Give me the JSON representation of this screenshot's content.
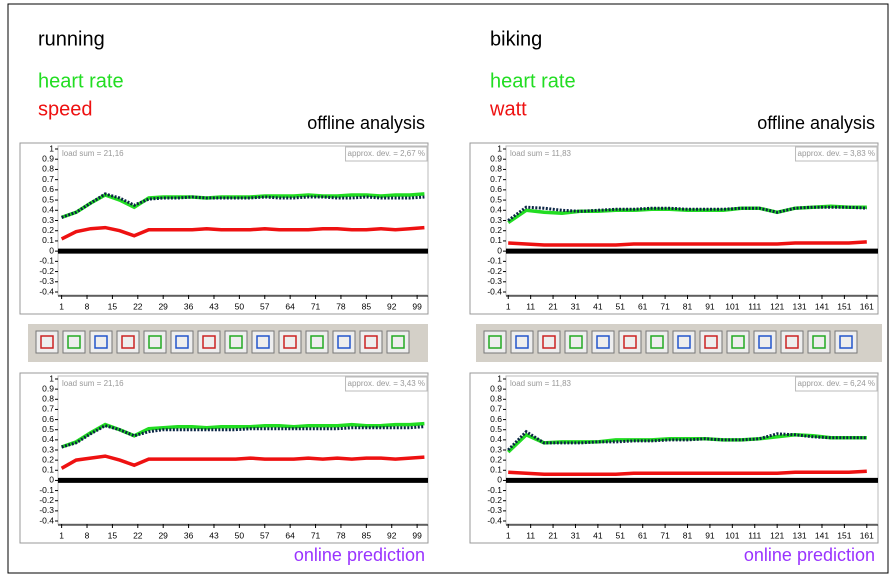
{
  "chart_data": [
    {
      "type": "line",
      "title": "running",
      "caption": "offline analysis",
      "annotations": [
        "load sum = 21,16",
        "approx. dev. = 2,67 %"
      ],
      "x": [
        1,
        5,
        9,
        13,
        17,
        21,
        25,
        29,
        33,
        37,
        41,
        45,
        49,
        53,
        57,
        61,
        65,
        69,
        73,
        77,
        81,
        85,
        89,
        93,
        97,
        101
      ],
      "xlim": [
        0,
        102
      ],
      "xticks": [
        1,
        8,
        15,
        22,
        29,
        36,
        43,
        50,
        57,
        64,
        71,
        78,
        85,
        92,
        99
      ],
      "ylim": [
        -0.4,
        1
      ],
      "yticks": [
        -0.4,
        -0.3,
        -0.2,
        -0.1,
        0,
        0.1,
        0.2,
        0.3,
        0.4,
        0.5,
        0.6,
        0.7,
        0.8,
        0.9,
        1
      ],
      "series": [
        {
          "name": "heart rate",
          "color": "#22dd22",
          "style": "solid",
          "values": [
            0.33,
            0.38,
            0.47,
            0.55,
            0.5,
            0.43,
            0.52,
            0.53,
            0.53,
            0.53,
            0.52,
            0.53,
            0.53,
            0.53,
            0.54,
            0.54,
            0.54,
            0.55,
            0.54,
            0.54,
            0.55,
            0.55,
            0.54,
            0.55,
            0.55,
            0.56
          ]
        },
        {
          "name": "speed",
          "color": "#ee1111",
          "style": "solid",
          "values": [
            0.12,
            0.19,
            0.22,
            0.23,
            0.2,
            0.15,
            0.21,
            0.21,
            0.21,
            0.21,
            0.22,
            0.21,
            0.21,
            0.21,
            0.22,
            0.21,
            0.21,
            0.21,
            0.22,
            0.22,
            0.21,
            0.21,
            0.22,
            0.21,
            0.22,
            0.23
          ]
        },
        {
          "color": "#0b2545",
          "style": "dotted",
          "values": [
            0.33,
            0.38,
            0.47,
            0.56,
            0.52,
            0.45,
            0.51,
            0.52,
            0.52,
            0.53,
            0.52,
            0.52,
            0.52,
            0.52,
            0.53,
            0.52,
            0.52,
            0.53,
            0.53,
            0.52,
            0.52,
            0.53,
            0.52,
            0.52,
            0.52,
            0.53
          ]
        }
      ]
    },
    {
      "type": "line",
      "caption": "online prediction",
      "annotations": [
        "load sum = 21,16",
        "approx. dev. = 3,43 %"
      ],
      "x": [
        1,
        5,
        9,
        13,
        17,
        21,
        25,
        29,
        33,
        37,
        41,
        45,
        49,
        53,
        57,
        61,
        65,
        69,
        73,
        77,
        81,
        85,
        89,
        93,
        97,
        101
      ],
      "xlim": [
        0,
        102
      ],
      "xticks": [
        1,
        8,
        15,
        22,
        29,
        36,
        43,
        50,
        57,
        64,
        71,
        78,
        85,
        92,
        99
      ],
      "ylim": [
        -0.4,
        1
      ],
      "yticks": [
        -0.4,
        -0.3,
        -0.2,
        -0.1,
        0,
        0.1,
        0.2,
        0.3,
        0.4,
        0.5,
        0.6,
        0.7,
        0.8,
        0.9,
        1
      ],
      "series": [
        {
          "color": "#22dd22",
          "style": "solid",
          "values": [
            0.33,
            0.38,
            0.47,
            0.55,
            0.5,
            0.44,
            0.51,
            0.52,
            0.53,
            0.53,
            0.52,
            0.53,
            0.53,
            0.53,
            0.54,
            0.54,
            0.53,
            0.54,
            0.54,
            0.54,
            0.55,
            0.54,
            0.54,
            0.55,
            0.55,
            0.56
          ]
        },
        {
          "color": "#ee1111",
          "style": "solid",
          "values": [
            0.12,
            0.2,
            0.22,
            0.24,
            0.2,
            0.15,
            0.21,
            0.21,
            0.21,
            0.21,
            0.21,
            0.21,
            0.21,
            0.22,
            0.21,
            0.21,
            0.21,
            0.22,
            0.21,
            0.22,
            0.21,
            0.22,
            0.22,
            0.21,
            0.22,
            0.23
          ]
        },
        {
          "color": "#0b2545",
          "style": "dotted",
          "values": [
            0.33,
            0.37,
            0.46,
            0.54,
            0.5,
            0.44,
            0.48,
            0.5,
            0.5,
            0.5,
            0.5,
            0.5,
            0.5,
            0.51,
            0.51,
            0.51,
            0.51,
            0.51,
            0.51,
            0.51,
            0.52,
            0.52,
            0.52,
            0.52,
            0.52,
            0.53
          ]
        }
      ]
    },
    {
      "type": "line",
      "title": "biking",
      "caption": "offline analysis",
      "annotations": [
        "load sum = 11,83",
        "approx. dev. = 3,83 %"
      ],
      "x": [
        1,
        9,
        17,
        25,
        33,
        41,
        49,
        57,
        65,
        73,
        81,
        89,
        97,
        105,
        113,
        121,
        129,
        137,
        145,
        153,
        161
      ],
      "xlim": [
        0,
        166
      ],
      "xticks": [
        1,
        11,
        21,
        31,
        41,
        51,
        61,
        71,
        81,
        91,
        101,
        111,
        121,
        131,
        141,
        151,
        161
      ],
      "ylim": [
        -0.4,
        1
      ],
      "yticks": [
        -0.4,
        -0.3,
        -0.2,
        -0.1,
        0,
        0.1,
        0.2,
        0.3,
        0.4,
        0.5,
        0.6,
        0.7,
        0.8,
        0.9,
        1
      ],
      "series": [
        {
          "name": "heart rate",
          "color": "#22dd22",
          "style": "solid",
          "values": [
            0.28,
            0.4,
            0.38,
            0.37,
            0.39,
            0.39,
            0.4,
            0.4,
            0.41,
            0.41,
            0.4,
            0.4,
            0.4,
            0.42,
            0.42,
            0.38,
            0.42,
            0.43,
            0.44,
            0.43,
            0.43
          ]
        },
        {
          "name": "watt",
          "color": "#ee1111",
          "style": "solid",
          "values": [
            0.08,
            0.07,
            0.06,
            0.06,
            0.06,
            0.06,
            0.06,
            0.07,
            0.07,
            0.07,
            0.07,
            0.07,
            0.07,
            0.07,
            0.07,
            0.07,
            0.08,
            0.08,
            0.08,
            0.08,
            0.09
          ]
        },
        {
          "color": "#0b2545",
          "style": "dotted",
          "values": [
            0.3,
            0.43,
            0.42,
            0.4,
            0.39,
            0.4,
            0.41,
            0.41,
            0.42,
            0.42,
            0.41,
            0.41,
            0.41,
            0.42,
            0.42,
            0.38,
            0.42,
            0.43,
            0.43,
            0.43,
            0.42
          ]
        }
      ]
    },
    {
      "type": "line",
      "caption": "online prediction",
      "annotations": [
        "load sum = 11,83",
        "approx. dev. = 6,24 %"
      ],
      "x": [
        1,
        9,
        17,
        25,
        33,
        41,
        49,
        57,
        65,
        73,
        81,
        89,
        97,
        105,
        113,
        121,
        129,
        137,
        145,
        153,
        161
      ],
      "xlim": [
        0,
        166
      ],
      "xticks": [
        1,
        11,
        21,
        31,
        41,
        51,
        61,
        71,
        81,
        91,
        101,
        111,
        121,
        131,
        141,
        151,
        161
      ],
      "ylim": [
        -0.4,
        1
      ],
      "yticks": [
        -0.4,
        -0.3,
        -0.2,
        -0.1,
        0,
        0.1,
        0.2,
        0.3,
        0.4,
        0.5,
        0.6,
        0.7,
        0.8,
        0.9,
        1
      ],
      "series": [
        {
          "color": "#22dd22",
          "style": "solid",
          "values": [
            0.28,
            0.45,
            0.37,
            0.38,
            0.38,
            0.38,
            0.4,
            0.4,
            0.4,
            0.41,
            0.41,
            0.41,
            0.4,
            0.4,
            0.41,
            0.43,
            0.45,
            0.44,
            0.42,
            0.42,
            0.42
          ]
        },
        {
          "color": "#ee1111",
          "style": "solid",
          "values": [
            0.08,
            0.07,
            0.06,
            0.06,
            0.06,
            0.06,
            0.06,
            0.07,
            0.07,
            0.07,
            0.07,
            0.07,
            0.07,
            0.07,
            0.07,
            0.07,
            0.08,
            0.08,
            0.08,
            0.08,
            0.09
          ]
        },
        {
          "color": "#0b2545",
          "style": "dotted",
          "values": [
            0.3,
            0.48,
            0.37,
            0.37,
            0.37,
            0.38,
            0.38,
            0.39,
            0.39,
            0.4,
            0.4,
            0.41,
            0.4,
            0.4,
            0.41,
            0.46,
            0.45,
            0.43,
            0.42,
            0.42,
            0.42
          ]
        }
      ]
    }
  ]
}
